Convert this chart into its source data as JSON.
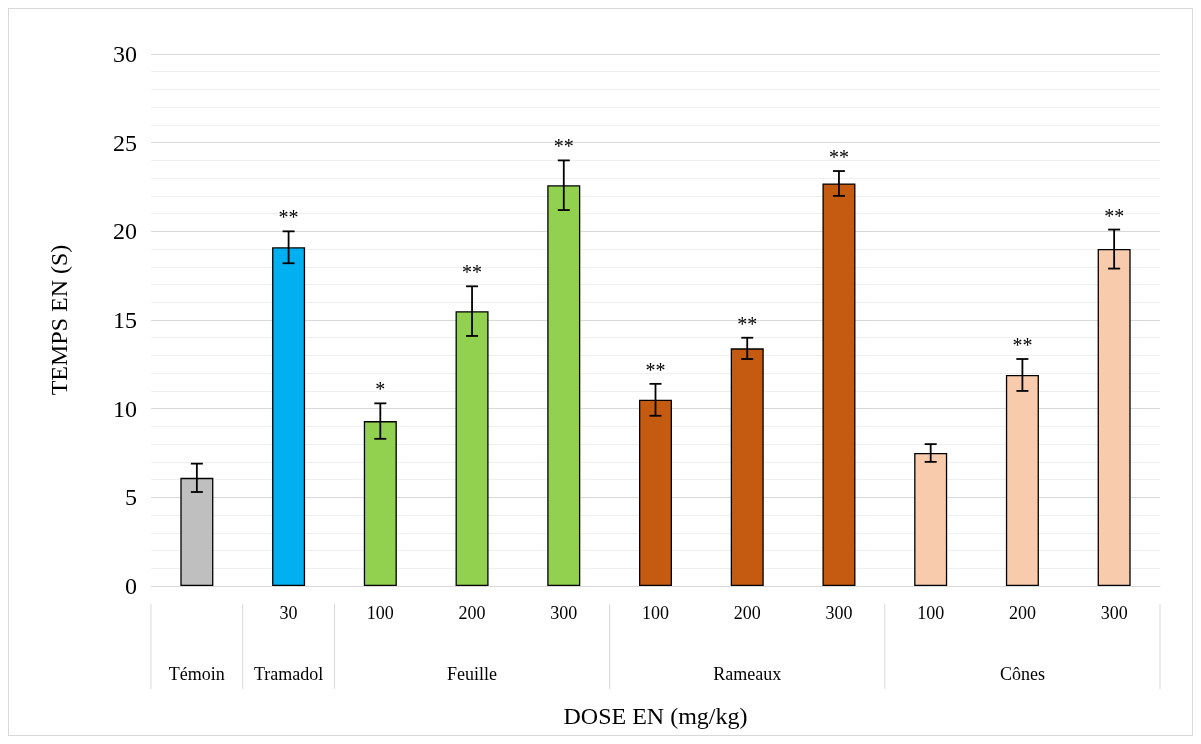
{
  "chart_data": {
    "type": "bar",
    "xlabel": "DOSE EN (mg/kg)",
    "ylabel": "TEMPS EN (S)",
    "categories": [
      null,
      "30",
      "100",
      "200",
      "300",
      "100",
      "200",
      "300",
      "100",
      "200",
      "300"
    ],
    "values": [
      6.1,
      19.1,
      9.3,
      15.5,
      22.6,
      10.5,
      13.4,
      22.7,
      7.5,
      11.9,
      19.0
    ],
    "errors": [
      0.8,
      0.9,
      1.0,
      1.4,
      1.4,
      0.9,
      0.6,
      0.7,
      0.5,
      0.9,
      1.1
    ],
    "colors": [
      "#bfbfbf",
      "#00b0f0",
      "#92d050",
      "#92d050",
      "#92d050",
      "#c55a11",
      "#c55a11",
      "#c55a11",
      "#f8cbad",
      "#f8cbad",
      "#f8cbad"
    ],
    "value_labels": [
      null,
      "**",
      "*",
      "**",
      "**",
      "**",
      "**",
      "**",
      null,
      "**",
      "**"
    ],
    "annotations": [
      "Témoin",
      "Tramadol",
      "Feuille",
      "Rameaux",
      "Cônes"
    ],
    "ylim": [
      0,
      30
    ],
    "yticks": [
      0,
      5,
      10,
      15,
      20,
      25,
      30
    ],
    "grid": "y"
  }
}
